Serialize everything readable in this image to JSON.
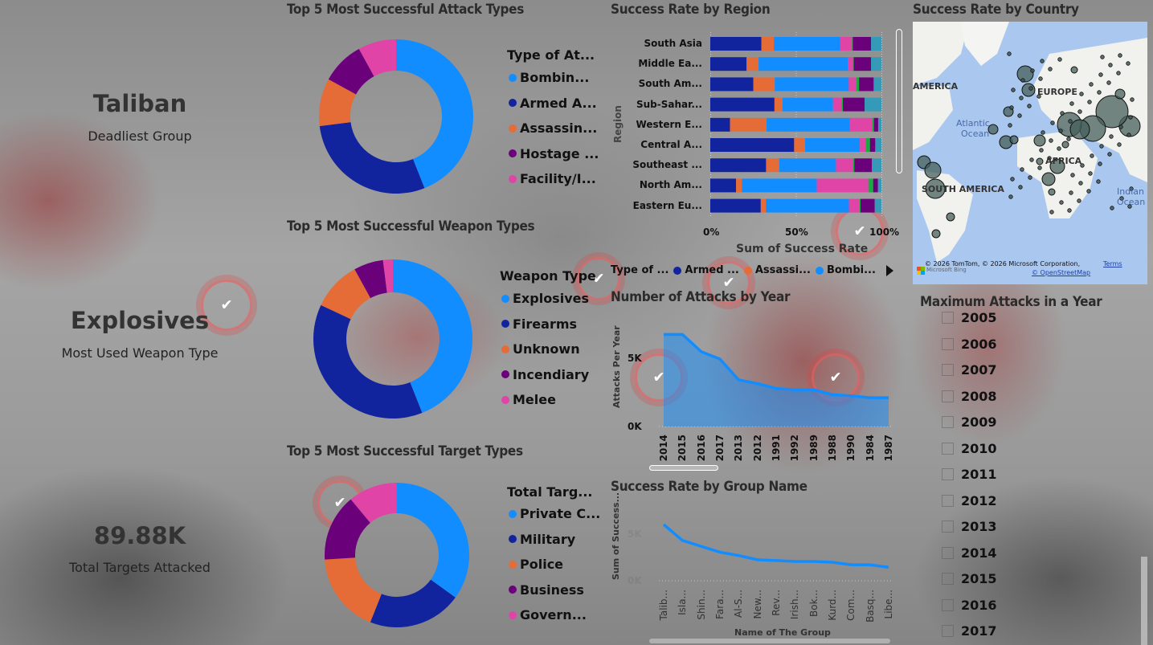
{
  "kpis": [
    {
      "value": "Taliban",
      "label": "Deadliest Group"
    },
    {
      "value": "Explosives",
      "label": "Most Used Weapon Type"
    },
    {
      "value": "89.88K",
      "label": "Total Targets Attacked"
    }
  ],
  "chart_data": [
    {
      "type": "pie",
      "donut": true,
      "title": "Top 5 Most Successful Attack Types",
      "legend_title": "Type of At...",
      "labels": [
        "Bombin...",
        "Armed A...",
        "Assassin...",
        "Hostage ...",
        "Facility/I..."
      ],
      "values": [
        44,
        29,
        10,
        9,
        8
      ],
      "colors": [
        "#118dff",
        "#12239e",
        "#e66c37",
        "#6b007b",
        "#e044a7"
      ]
    },
    {
      "type": "pie",
      "donut": true,
      "title": "Top 5 Most Successful Weapon Types",
      "legend_title": "Weapon Type",
      "labels": [
        "Explosives",
        "Firearms",
        "Unknown",
        "Incendiary",
        "Melee"
      ],
      "values": [
        44,
        38,
        10,
        6,
        2
      ],
      "colors": [
        "#118dff",
        "#12239e",
        "#e66c37",
        "#6b007b",
        "#e044a7"
      ]
    },
    {
      "type": "pie",
      "donut": true,
      "title": "Top 5 Most Successful Target Types",
      "legend_title": "Total Targ...",
      "labels": [
        "Private C...",
        "Military",
        "Police",
        "Business",
        "Govern..."
      ],
      "values": [
        35,
        21,
        18,
        15,
        11
      ],
      "colors": [
        "#118dff",
        "#12239e",
        "#e66c37",
        "#6b007b",
        "#e044a7"
      ]
    },
    {
      "type": "bar",
      "stacked": "100%",
      "orientation": "horizontal",
      "title": "Success Rate by Region",
      "ylabel": "Region",
      "xlabel": "Sum of Success Rate",
      "xticks": [
        "0%",
        "50%",
        "100%"
      ],
      "legend_title": "Type of ...",
      "legend": [
        "Armed ...",
        "Assassi...",
        "Bombi..."
      ],
      "segment_colors": [
        "#12239e",
        "#e66c37",
        "#118dff",
        "#e044a7",
        "#1aab40",
        "#6b007b",
        "#3599b8"
      ],
      "categories": [
        "South Asia",
        "Middle Ea...",
        "South Am...",
        "Sub-Sahar...",
        "Western E...",
        "Central A...",
        "Southeast ...",
        "North Am...",
        "Eastern Eu..."
      ],
      "values": [
        [
          29.5,
          7.3,
          38.2,
          6.9,
          0.5,
          10.5,
          6
        ],
        [
          21,
          7,
          51.6,
          3,
          0.5,
          10,
          6
        ],
        [
          25,
          12.5,
          43,
          4.5,
          1.5,
          8.5,
          4.5
        ],
        [
          37.5,
          4.7,
          29.5,
          5,
          0.8,
          12.7,
          9.8
        ],
        [
          11.5,
          21.4,
          48.7,
          13,
          1,
          2.5,
          1.9
        ],
        [
          49,
          6.4,
          32,
          3.4,
          2.5,
          3.1,
          3.6
        ],
        [
          32.4,
          7.6,
          33,
          9.7,
          1,
          10.1,
          5.6
        ],
        [
          15,
          3.4,
          43.5,
          30,
          2.8,
          2.8,
          2
        ],
        [
          29.5,
          3,
          48.5,
          6,
          0.8,
          8.3,
          3.9
        ]
      ]
    },
    {
      "type": "area",
      "title": "Number of Attacks by Year",
      "ylabel": "Attacks Per Year",
      "yticks": [
        "0K",
        "5K"
      ],
      "ylim": [
        0,
        8000
      ],
      "categories": [
        "2014",
        "2015",
        "2016",
        "2017",
        "2013",
        "2012",
        "1991",
        "1992",
        "1989",
        "1988",
        "1990",
        "1984",
        "1987"
      ],
      "values": [
        7500,
        7500,
        6100,
        5500,
        3800,
        3500,
        3100,
        3000,
        3000,
        2600,
        2500,
        2350,
        2350
      ],
      "color": "#118dff"
    },
    {
      "type": "line",
      "title": "Success Rate by Group Name",
      "ylabel": "Sum of Success...",
      "xlabel": "Name of The Group",
      "yticks": [
        "0K",
        "5K"
      ],
      "ylim": [
        0,
        8000
      ],
      "categories": [
        "Talib...",
        "Isla...",
        "Shin...",
        "Fara...",
        "Al-S...",
        "New...",
        "Rev...",
        "Irish...",
        "Bok...",
        "Kurd...",
        "Com...",
        "Basq...",
        "Libe..."
      ],
      "values": [
        6700,
        4800,
        4100,
        3400,
        3000,
        2500,
        2400,
        2300,
        2300,
        2200,
        1900,
        1900,
        1600
      ],
      "color": "#118dff"
    }
  ],
  "map": {
    "title": "Success Rate by Country",
    "labels": [
      "AMERICA",
      "Atlantic",
      "Ocean",
      "EUROPE",
      "AFRICA",
      "SOUTH AMERICA",
      "Indian",
      "Ocean"
    ],
    "attribution": "© 2026 TomTom, © 2026 Microsoft Corporation,",
    "terms": "Terms",
    "osm": "© OpenStreetMap",
    "bing": "Microsoft Bing"
  },
  "slicer": {
    "title": "Maximum Attacks in a Year",
    "years": [
      "2005",
      "2006",
      "2007",
      "2008",
      "2009",
      "2010",
      "2011",
      "2012",
      "2013",
      "2014",
      "2015",
      "2016",
      "2017"
    ]
  }
}
